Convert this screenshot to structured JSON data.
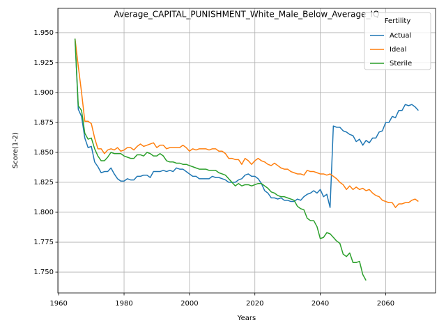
{
  "chart_data": {
    "type": "line",
    "title": "Average_CAPITAL_PUNISHMENT_White_Male_Below_Average_IQ",
    "xlabel": "Years",
    "ylabel": "Score(1-2)",
    "legend_title": "Fertility",
    "legend": "upper right",
    "grid": true,
    "x": [
      1965,
      1966,
      1967,
      1968,
      1969,
      1970,
      1971,
      1972,
      1973,
      1974,
      1975,
      1976,
      1977,
      1978,
      1979,
      1980,
      1981,
      1982,
      1983,
      1984,
      1985,
      1986,
      1987,
      1988,
      1989,
      1990,
      1991,
      1992,
      1993,
      1994,
      1995,
      1996,
      1997,
      1998,
      1999,
      2000,
      2001,
      2002,
      2003,
      2004,
      2005,
      2006,
      2007,
      2008,
      2009,
      2010,
      2011,
      2012,
      2013,
      2014,
      2015,
      2016,
      2017,
      2018,
      2019,
      2020,
      2021,
      2022,
      2023,
      2024,
      2025,
      2026,
      2027,
      2028,
      2029,
      2030,
      2031,
      2032,
      2033,
      2034,
      2035,
      2036,
      2037,
      2038,
      2039,
      2040,
      2041,
      2042,
      2043,
      2044,
      2045,
      2046,
      2047,
      2048,
      2049,
      2050,
      2051,
      2052,
      2053,
      2054,
      2055,
      2056,
      2057,
      2058,
      2059,
      2060,
      2061,
      2062,
      2063,
      2064,
      2065,
      2066,
      2067,
      2068,
      2069,
      2070
    ],
    "series": [
      {
        "name": "Actual",
        "color": "#1f77b4",
        "values": [
          1.945,
          1.886,
          1.88,
          1.862,
          1.854,
          1.855,
          1.842,
          1.838,
          1.833,
          1.834,
          1.834,
          1.837,
          1.832,
          1.828,
          1.826,
          1.826,
          1.828,
          1.827,
          1.827,
          1.83,
          1.83,
          1.831,
          1.831,
          1.829,
          1.834,
          1.834,
          1.834,
          1.835,
          1.834,
          1.835,
          1.834,
          1.837,
          1.836,
          1.836,
          1.834,
          1.832,
          1.83,
          1.83,
          1.828,
          1.828,
          1.828,
          1.828,
          1.83,
          1.829,
          1.829,
          1.828,
          1.827,
          1.825,
          1.825,
          1.825,
          1.827,
          1.828,
          1.831,
          1.832,
          1.83,
          1.83,
          1.828,
          1.824,
          1.818,
          1.816,
          1.812,
          1.812,
          1.811,
          1.812,
          1.81,
          1.81,
          1.809,
          1.809,
          1.811,
          1.81,
          1.813,
          1.815,
          1.816,
          1.818,
          1.816,
          1.819,
          1.813,
          1.815,
          1.804,
          1.872,
          1.871,
          1.871,
          1.868,
          1.867,
          1.865,
          1.864,
          1.859,
          1.861,
          1.856,
          1.86,
          1.858,
          1.862,
          1.862,
          1.867,
          1.868,
          1.875,
          1.875,
          1.88,
          1.879,
          1.885,
          1.885,
          1.89,
          1.889,
          1.89,
          1.888,
          1.885
        ]
      },
      {
        "name": "Ideal",
        "color": "#ff7f0e",
        "values": [
          1.945,
          1.922,
          1.9,
          1.876,
          1.876,
          1.874,
          1.862,
          1.853,
          1.853,
          1.849,
          1.852,
          1.853,
          1.852,
          1.854,
          1.851,
          1.852,
          1.854,
          1.854,
          1.852,
          1.855,
          1.857,
          1.855,
          1.856,
          1.857,
          1.858,
          1.854,
          1.856,
          1.856,
          1.853,
          1.854,
          1.854,
          1.854,
          1.854,
          1.856,
          1.854,
          1.851,
          1.853,
          1.852,
          1.853,
          1.853,
          1.853,
          1.852,
          1.853,
          1.853,
          1.851,
          1.851,
          1.849,
          1.845,
          1.845,
          1.844,
          1.844,
          1.84,
          1.845,
          1.843,
          1.84,
          1.843,
          1.845,
          1.843,
          1.842,
          1.84,
          1.839,
          1.841,
          1.839,
          1.837,
          1.836,
          1.836,
          1.834,
          1.833,
          1.832,
          1.832,
          1.831,
          1.835,
          1.834,
          1.834,
          1.833,
          1.832,
          1.832,
          1.831,
          1.832,
          1.83,
          1.828,
          1.825,
          1.823,
          1.819,
          1.822,
          1.819,
          1.821,
          1.819,
          1.82,
          1.818,
          1.819,
          1.816,
          1.814,
          1.813,
          1.81,
          1.809,
          1.808,
          1.808,
          1.804,
          1.807,
          1.807,
          1.808,
          1.808,
          1.81,
          1.811,
          1.809
        ]
      },
      {
        "name": "Sterile",
        "color": "#2ca02c",
        "values": [
          1.945,
          1.889,
          1.885,
          1.866,
          1.861,
          1.862,
          1.853,
          1.847,
          1.843,
          1.843,
          1.846,
          1.85,
          1.849,
          1.849,
          1.849,
          1.847,
          1.846,
          1.845,
          1.845,
          1.848,
          1.848,
          1.847,
          1.85,
          1.849,
          1.847,
          1.847,
          1.849,
          1.847,
          1.843,
          1.842,
          1.842,
          1.841,
          1.841,
          1.84,
          1.84,
          1.839,
          1.838,
          1.837,
          1.836,
          1.836,
          1.836,
          1.835,
          1.835,
          1.835,
          1.833,
          1.832,
          1.831,
          1.828,
          1.825,
          1.822,
          1.824,
          1.822,
          1.823,
          1.823,
          1.822,
          1.823,
          1.824,
          1.824,
          1.822,
          1.82,
          1.817,
          1.816,
          1.814,
          1.813,
          1.813,
          1.812,
          1.811,
          1.81,
          1.805,
          1.803,
          1.802,
          1.795,
          1.793,
          1.793,
          1.788,
          1.778,
          1.779,
          1.783,
          1.782,
          1.779,
          1.776,
          1.774,
          1.765,
          1.763,
          1.766,
          1.758,
          1.758,
          1.759,
          1.748,
          1.743,
          null,
          null,
          null,
          null,
          null,
          null,
          null,
          null,
          null,
          null,
          null,
          null,
          null,
          null,
          null,
          null
        ]
      }
    ],
    "xlim": [
      1959.75,
      2075.25
    ],
    "xticks": [
      1960,
      1980,
      2000,
      2020,
      2040,
      2060
    ],
    "ylim": [
      1.7326,
      1.9703
    ],
    "yticks": [
      {
        "value": 1.75,
        "label": "1.750"
      },
      1.775,
      {
        "value": 1.8,
        "label": "1.800"
      },
      1.825,
      {
        "value": 1.85,
        "label": "1.850"
      },
      1.875,
      {
        "value": 1.9,
        "label": "1.900"
      },
      1.925,
      {
        "value": 1.95,
        "label": "1.950"
      }
    ]
  }
}
